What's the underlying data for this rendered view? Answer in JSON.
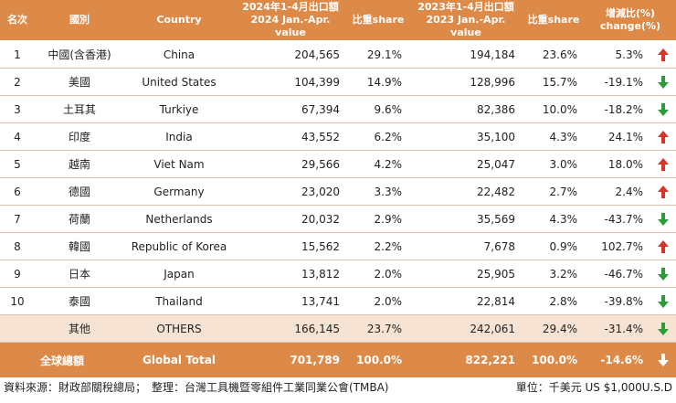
{
  "columns": {
    "rank": "名次",
    "country_zh": "國別",
    "country_en": "Country",
    "val2024_line1": "2024年1-4月出口額",
    "val2024_line2": "2024 Jan.-Apr. value",
    "share2024": "比重share",
    "val2023_line1": "2023年1-4月出口額",
    "val2023_line2": "2023 Jan.-Apr. value",
    "share2023": "比重share",
    "change_line1": "增減比(%)",
    "change_line2": "change(%)"
  },
  "rows": [
    {
      "rank": "1",
      "zh": "中國(含香港)",
      "en": "China",
      "v2024": "204,565",
      "s2024": "29.1%",
      "v2023": "194,184",
      "s2023": "23.6%",
      "change": "5.3%",
      "trend": "up"
    },
    {
      "rank": "2",
      "zh": "美國",
      "en": "United States",
      "v2024": "104,399",
      "s2024": "14.9%",
      "v2023": "128,996",
      "s2023": "15.7%",
      "change": "-19.1%",
      "trend": "down"
    },
    {
      "rank": "3",
      "zh": "土耳其",
      "en": "Turkiye",
      "v2024": "67,394",
      "s2024": "9.6%",
      "v2023": "82,386",
      "s2023": "10.0%",
      "change": "-18.2%",
      "trend": "down"
    },
    {
      "rank": "4",
      "zh": "印度",
      "en": "India",
      "v2024": "43,552",
      "s2024": "6.2%",
      "v2023": "35,100",
      "s2023": "4.3%",
      "change": "24.1%",
      "trend": "up"
    },
    {
      "rank": "5",
      "zh": "越南",
      "en": "Viet Nam",
      "v2024": "29,566",
      "s2024": "4.2%",
      "v2023": "25,047",
      "s2023": "3.0%",
      "change": "18.0%",
      "trend": "up"
    },
    {
      "rank": "6",
      "zh": "德國",
      "en": "Germany",
      "v2024": "23,020",
      "s2024": "3.3%",
      "v2023": "22,482",
      "s2023": "2.7%",
      "change": "2.4%",
      "trend": "up"
    },
    {
      "rank": "7",
      "zh": "荷蘭",
      "en": "Netherlands",
      "v2024": "20,032",
      "s2024": "2.9%",
      "v2023": "35,569",
      "s2023": "4.3%",
      "change": "-43.7%",
      "trend": "down"
    },
    {
      "rank": "8",
      "zh": "韓國",
      "en": "Republic of Korea",
      "v2024": "15,562",
      "s2024": "2.2%",
      "v2023": "7,678",
      "s2023": "0.9%",
      "change": "102.7%",
      "trend": "up"
    },
    {
      "rank": "9",
      "zh": "日本",
      "en": "Japan",
      "v2024": "13,812",
      "s2024": "2.0%",
      "v2023": "25,905",
      "s2023": "3.2%",
      "change": "-46.7%",
      "trend": "down"
    },
    {
      "rank": "10",
      "zh": "泰國",
      "en": "Thailand",
      "v2024": "13,741",
      "s2024": "2.0%",
      "v2023": "22,814",
      "s2023": "2.8%",
      "change": "-39.8%",
      "trend": "down"
    }
  ],
  "others": {
    "rank": "",
    "zh": "其他",
    "en": "OTHERS",
    "v2024": "166,145",
    "s2024": "23.7%",
    "v2023": "242,061",
    "s2023": "29.4%",
    "change": "-31.4%",
    "trend": "down"
  },
  "total": {
    "zh": "全球總額",
    "en": "Global Total",
    "v2024": "701,789",
    "s2024": "100.0%",
    "v2023": "822,221",
    "s2023": "100.0%",
    "change": "-14.6%",
    "trend": "down"
  },
  "footer": {
    "source": "資料來源：財政部關稅總局；　整理：台灣工具機暨零組件工業同業公會(TMBA)",
    "unit": "單位：千美元 US $1,000U.S.D"
  },
  "colors": {
    "header": "#dd8a48",
    "up": "#d9342b",
    "down": "#2f9a3a",
    "total_arrow": "#ffffff"
  }
}
